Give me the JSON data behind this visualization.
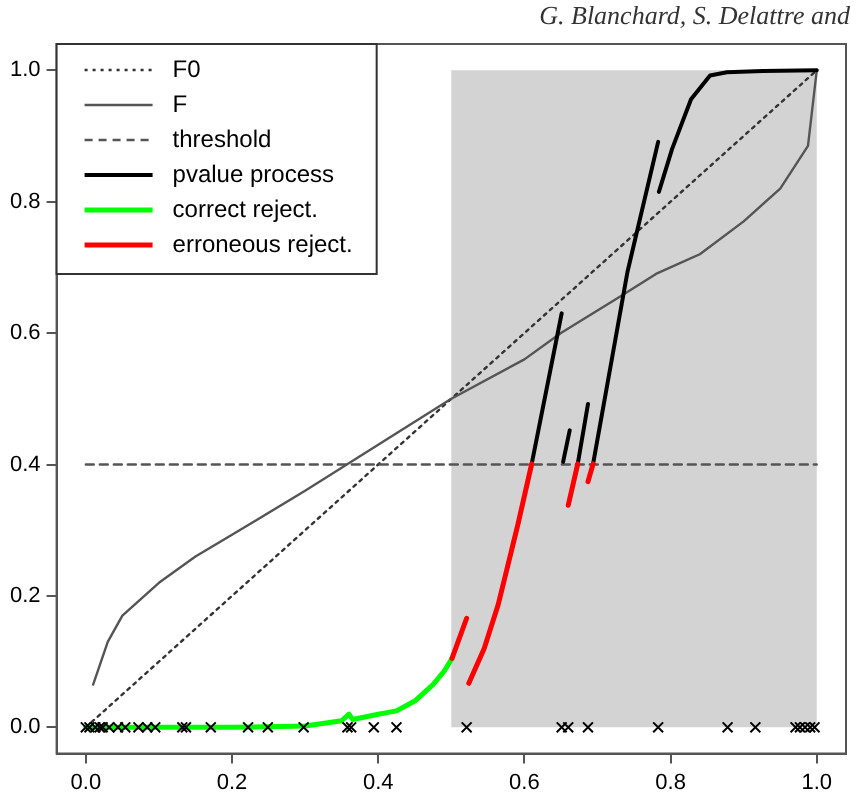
{
  "chart_data": {
    "type": "line",
    "annotations": [
      "G. Blanchard, S. Delattre and"
    ],
    "xlim": [
      -0.04,
      1.04
    ],
    "xticks": [
      {
        "value": 0,
        "label": "0.0"
      },
      0.2,
      0.4,
      0.6,
      0.8,
      {
        "value": 1,
        "label": "1.0"
      }
    ],
    "ylim": [
      -0.04,
      1.04
    ],
    "yticks": [
      {
        "value": 0,
        "label": "0.0"
      },
      0.2,
      0.4,
      0.6,
      0.8,
      {
        "value": 1,
        "label": "1.0"
      }
    ],
    "grid": false,
    "legend": "top left",
    "bands": [
      {
        "axis": "x",
        "from": 0.5,
        "to": 1,
        "color": "#d3d3d3"
      }
    ],
    "series": [
      {
        "name": "F0",
        "color": "#333333",
        "line_style": "dotted",
        "x": [
          0,
          1
        ],
        "values": [
          0,
          1
        ]
      },
      {
        "name": "F",
        "color": "#555555",
        "line_style": "solid",
        "x": [
          0.01,
          0.03,
          0.05,
          0.1,
          0.15,
          0.2,
          0.3,
          0.4,
          0.5,
          0.6,
          0.65,
          0.73,
          0.78,
          0.84,
          0.9,
          0.95,
          0.988,
          1
        ],
        "values": [
          0.065,
          0.13,
          0.17,
          0.22,
          0.26,
          0.293,
          0.36,
          0.43,
          0.5,
          0.56,
          0.6,
          0.655,
          0.69,
          0.72,
          0.77,
          0.82,
          0.885,
          1
        ]
      },
      {
        "name": "threshold",
        "color": "#555555",
        "line_style": "dashed",
        "x": [
          0,
          1
        ],
        "values": [
          0.4,
          0.4
        ]
      },
      {
        "name": "pvalue process",
        "color": "#000000",
        "line_style": "solid",
        "x": [
          0.61,
          0.651,
          0.652,
          0.653,
          0.662,
          0.667,
          0.673,
          0.687,
          0.69,
          0.694,
          0.741,
          0.783,
          0.7835,
          0.784,
          0.802,
          0.828,
          0.854,
          0.877,
          0.926,
          1
        ],
        "values": [
          0.401,
          0.63,
          null,
          0.404,
          0.452,
          null,
          0.401,
          0.492,
          null,
          0.401,
          0.693,
          0.891,
          null,
          0.815,
          0.88,
          0.956,
          0.992,
          0.997,
          0.999,
          1
        ]
      },
      {
        "name": "correct reject.",
        "color": "#00ff00",
        "line_style": "solid",
        "x": [
          0,
          0.1,
          0.2,
          0.3,
          0.35,
          0.36,
          0.365,
          0.4,
          0.41,
          0.425,
          0.45,
          0.475,
          0.49,
          0.501
        ],
        "values": [
          0,
          0,
          0,
          0.002,
          0.01,
          0.02,
          0.012,
          0.02,
          0.022,
          0.025,
          0.04,
          0.065,
          0.085,
          0.105
        ]
      },
      {
        "name": "erroneous reject.",
        "color": "#ff0000",
        "line_style": "solid",
        "x": [
          0.501,
          0.521,
          0.522,
          0.524,
          0.545,
          0.564,
          0.591,
          0.61,
          0.63,
          0.66,
          0.673,
          0.68,
          0.687,
          0.694
        ],
        "values": [
          0.105,
          0.166,
          null,
          0.067,
          0.12,
          0.186,
          0.308,
          0.401,
          null,
          0.338,
          0.401,
          null,
          0.374,
          0.401
        ]
      },
      {
        "type": "scatter",
        "color": "#000000",
        "marker": "cross",
        "x": [
          0,
          0.005,
          0.013,
          0.019,
          0.023,
          0.032,
          0.044,
          0.054,
          0.072,
          0.084,
          0.095,
          0.132,
          0.137,
          0.171,
          0.222,
          0.249,
          0.298,
          0.358,
          0.363,
          0.394,
          0.425,
          0.521,
          0.651,
          0.66,
          0.687,
          0.783,
          0.878,
          0.916,
          0.971,
          0.977,
          0.984,
          0.991,
          0.997
        ],
        "values": [
          0,
          0,
          0,
          0,
          0,
          0,
          0,
          0,
          0,
          0,
          0,
          0,
          0,
          0,
          0,
          0,
          0,
          0,
          0,
          0,
          0,
          0,
          0,
          0,
          0,
          0,
          0,
          0,
          0,
          0,
          0,
          0,
          0
        ]
      }
    ]
  }
}
